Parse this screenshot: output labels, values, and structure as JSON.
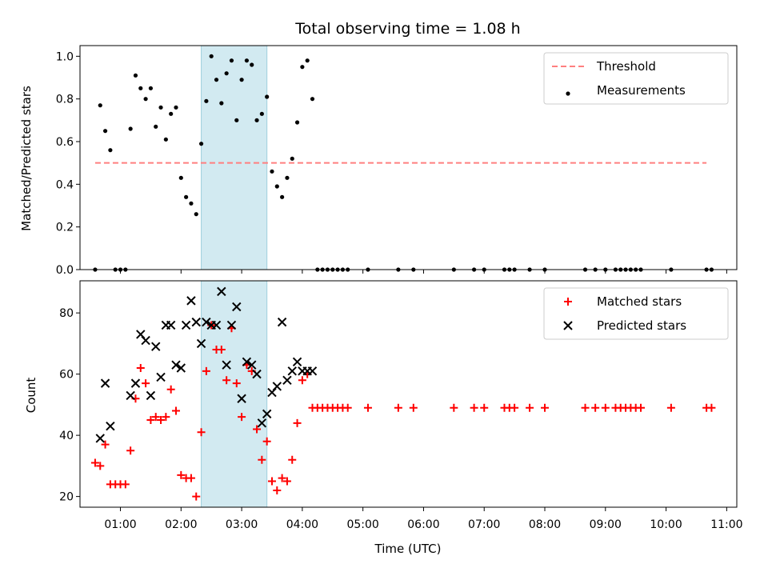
{
  "chart_data": {
    "type": "scatter",
    "title": "Total observing time = 1.08 h",
    "xlabel": "Time (UTC)",
    "x_unit": "hours UTC",
    "xlim": [
      "00:20",
      "11:10"
    ],
    "xticks": [
      "01:00",
      "02:00",
      "03:00",
      "04:00",
      "05:00",
      "06:00",
      "07:00",
      "08:00",
      "09:00",
      "10:00",
      "11:00"
    ],
    "highlight_span": {
      "start": "02:20",
      "end": "03:25",
      "color": "#add8e6"
    },
    "panels": [
      {
        "ylabel": "Matched/Predicted stars",
        "ylim": [
          0,
          1.05
        ],
        "yticks": [
          "0.0",
          "0.2",
          "0.4",
          "0.6",
          "0.8",
          "1.0"
        ],
        "legend": {
          "position": "upper right",
          "entries": [
            "Threshold",
            "Measurements"
          ]
        },
        "threshold": {
          "name": "Threshold",
          "value": 0.5,
          "x_range": [
            "00:35",
            "10:40"
          ],
          "color": "#ff7f7f",
          "style": "dashed"
        },
        "series": [
          {
            "name": "Measurements",
            "marker": "dot",
            "color": "#000000",
            "points": [
              [
                "00:35",
                0.0
              ],
              [
                "00:40",
                0.77
              ],
              [
                "00:45",
                0.65
              ],
              [
                "00:50",
                0.56
              ],
              [
                "00:55",
                0.0
              ],
              [
                "01:00",
                0.0
              ],
              [
                "01:05",
                0.0
              ],
              [
                "01:10",
                0.66
              ],
              [
                "01:15",
                0.91
              ],
              [
                "01:20",
                0.85
              ],
              [
                "01:25",
                0.8
              ],
              [
                "01:30",
                0.85
              ],
              [
                "01:35",
                0.67
              ],
              [
                "01:40",
                0.76
              ],
              [
                "01:45",
                0.61
              ],
              [
                "01:50",
                0.73
              ],
              [
                "01:55",
                0.76
              ],
              [
                "02:00",
                0.43
              ],
              [
                "02:05",
                0.34
              ],
              [
                "02:10",
                0.31
              ],
              [
                "02:15",
                0.26
              ],
              [
                "02:20",
                0.59
              ],
              [
                "02:25",
                0.79
              ],
              [
                "02:30",
                1.0
              ],
              [
                "02:35",
                0.89
              ],
              [
                "02:40",
                0.78
              ],
              [
                "02:45",
                0.92
              ],
              [
                "02:50",
                0.98
              ],
              [
                "02:55",
                0.7
              ],
              [
                "03:00",
                0.89
              ],
              [
                "03:05",
                0.98
              ],
              [
                "03:10",
                0.96
              ],
              [
                "03:15",
                0.7
              ],
              [
                "03:20",
                0.73
              ],
              [
                "03:25",
                0.81
              ],
              [
                "03:30",
                0.46
              ],
              [
                "03:35",
                0.39
              ],
              [
                "03:40",
                0.34
              ],
              [
                "03:45",
                0.43
              ],
              [
                "03:50",
                0.52
              ],
              [
                "03:55",
                0.69
              ],
              [
                "04:00",
                0.95
              ],
              [
                "04:05",
                0.98
              ],
              [
                "04:10",
                0.8
              ],
              [
                "04:15",
                0.0
              ],
              [
                "04:20",
                0.0
              ],
              [
                "04:25",
                0.0
              ],
              [
                "04:30",
                0.0
              ],
              [
                "04:35",
                0.0
              ],
              [
                "04:40",
                0.0
              ],
              [
                "04:45",
                0.0
              ],
              [
                "05:05",
                0.0
              ],
              [
                "05:35",
                0.0
              ],
              [
                "05:50",
                0.0
              ],
              [
                "06:30",
                0.0
              ],
              [
                "06:50",
                0.0
              ],
              [
                "07:00",
                0.0
              ],
              [
                "07:20",
                0.0
              ],
              [
                "07:25",
                0.0
              ],
              [
                "07:30",
                0.0
              ],
              [
                "07:45",
                0.0
              ],
              [
                "08:00",
                0.0
              ],
              [
                "08:40",
                0.0
              ],
              [
                "08:50",
                0.0
              ],
              [
                "09:00",
                0.0
              ],
              [
                "09:10",
                0.0
              ],
              [
                "09:15",
                0.0
              ],
              [
                "09:20",
                0.0
              ],
              [
                "09:25",
                0.0
              ],
              [
                "09:30",
                0.0
              ],
              [
                "09:35",
                0.0
              ],
              [
                "10:05",
                0.0
              ],
              [
                "10:40",
                0.0
              ],
              [
                "10:45",
                0.0
              ]
            ]
          }
        ]
      },
      {
        "ylabel": "Count",
        "ylim": [
          16.5,
          90.5
        ],
        "yticks": [
          "20",
          "40",
          "60",
          "80"
        ],
        "legend": {
          "position": "upper right",
          "entries": [
            "Matched stars",
            "Predicted stars"
          ]
        },
        "series": [
          {
            "name": "Matched stars",
            "marker": "plus",
            "color": "#ff0000",
            "points": [
              [
                "00:35",
                31
              ],
              [
                "00:40",
                30
              ],
              [
                "00:45",
                37
              ],
              [
                "00:50",
                24
              ],
              [
                "00:55",
                24
              ],
              [
                "01:00",
                24
              ],
              [
                "01:05",
                24
              ],
              [
                "01:10",
                35
              ],
              [
                "01:15",
                52
              ],
              [
                "01:20",
                62
              ],
              [
                "01:25",
                57
              ],
              [
                "01:30",
                45
              ],
              [
                "01:35",
                46
              ],
              [
                "01:40",
                45
              ],
              [
                "01:45",
                46
              ],
              [
                "01:50",
                55
              ],
              [
                "01:55",
                48
              ],
              [
                "02:00",
                27
              ],
              [
                "02:05",
                26
              ],
              [
                "02:10",
                26
              ],
              [
                "02:15",
                20
              ],
              [
                "02:20",
                41
              ],
              [
                "02:25",
                61
              ],
              [
                "02:30",
                76
              ],
              [
                "02:35",
                68
              ],
              [
                "02:40",
                68
              ],
              [
                "02:45",
                58
              ],
              [
                "02:50",
                75
              ],
              [
                "02:55",
                57
              ],
              [
                "03:00",
                46
              ],
              [
                "03:05",
                63
              ],
              [
                "03:10",
                61
              ],
              [
                "03:15",
                42
              ],
              [
                "03:20",
                32
              ],
              [
                "03:25",
                38
              ],
              [
                "03:30",
                25
              ],
              [
                "03:35",
                22
              ],
              [
                "03:40",
                26
              ],
              [
                "03:45",
                25
              ],
              [
                "03:50",
                32
              ],
              [
                "03:55",
                44
              ],
              [
                "04:00",
                58
              ],
              [
                "04:05",
                60
              ],
              [
                "04:10",
                49
              ],
              [
                "04:15",
                49
              ],
              [
                "04:20",
                49
              ],
              [
                "04:25",
                49
              ],
              [
                "04:30",
                49
              ],
              [
                "04:35",
                49
              ],
              [
                "04:40",
                49
              ],
              [
                "04:45",
                49
              ],
              [
                "05:05",
                49
              ],
              [
                "05:35",
                49
              ],
              [
                "05:50",
                49
              ],
              [
                "06:30",
                49
              ],
              [
                "06:50",
                49
              ],
              [
                "07:00",
                49
              ],
              [
                "07:20",
                49
              ],
              [
                "07:25",
                49
              ],
              [
                "07:30",
                49
              ],
              [
                "07:45",
                49
              ],
              [
                "08:00",
                49
              ],
              [
                "08:40",
                49
              ],
              [
                "08:50",
                49
              ],
              [
                "09:00",
                49
              ],
              [
                "09:10",
                49
              ],
              [
                "09:15",
                49
              ],
              [
                "09:20",
                49
              ],
              [
                "09:25",
                49
              ],
              [
                "09:30",
                49
              ],
              [
                "09:35",
                49
              ],
              [
                "10:05",
                49
              ],
              [
                "10:40",
                49
              ],
              [
                "10:45",
                49
              ]
            ]
          },
          {
            "name": "Predicted stars",
            "marker": "x",
            "color": "#000000",
            "points": [
              [
                "00:40",
                39
              ],
              [
                "00:45",
                57
              ],
              [
                "00:50",
                43
              ],
              [
                "01:10",
                53
              ],
              [
                "01:15",
                57
              ],
              [
                "01:20",
                73
              ],
              [
                "01:25",
                71
              ],
              [
                "01:30",
                53
              ],
              [
                "01:35",
                69
              ],
              [
                "01:40",
                59
              ],
              [
                "01:45",
                76
              ],
              [
                "01:50",
                76
              ],
              [
                "01:55",
                63
              ],
              [
                "02:00",
                62
              ],
              [
                "02:05",
                76
              ],
              [
                "02:10",
                84
              ],
              [
                "02:15",
                77
              ],
              [
                "02:20",
                70
              ],
              [
                "02:25",
                77
              ],
              [
                "02:30",
                76
              ],
              [
                "02:35",
                76
              ],
              [
                "02:40",
                87
              ],
              [
                "02:45",
                63
              ],
              [
                "02:50",
                76
              ],
              [
                "02:55",
                82
              ],
              [
                "03:00",
                52
              ],
              [
                "03:05",
                64
              ],
              [
                "03:10",
                63
              ],
              [
                "03:15",
                60
              ],
              [
                "03:20",
                44
              ],
              [
                "03:25",
                47
              ],
              [
                "03:30",
                54
              ],
              [
                "03:35",
                56
              ],
              [
                "03:40",
                77
              ],
              [
                "03:45",
                58
              ],
              [
                "03:50",
                61
              ],
              [
                "03:55",
                64
              ],
              [
                "04:00",
                61
              ],
              [
                "04:05",
                61
              ],
              [
                "04:10",
                61
              ]
            ]
          }
        ]
      }
    ]
  }
}
